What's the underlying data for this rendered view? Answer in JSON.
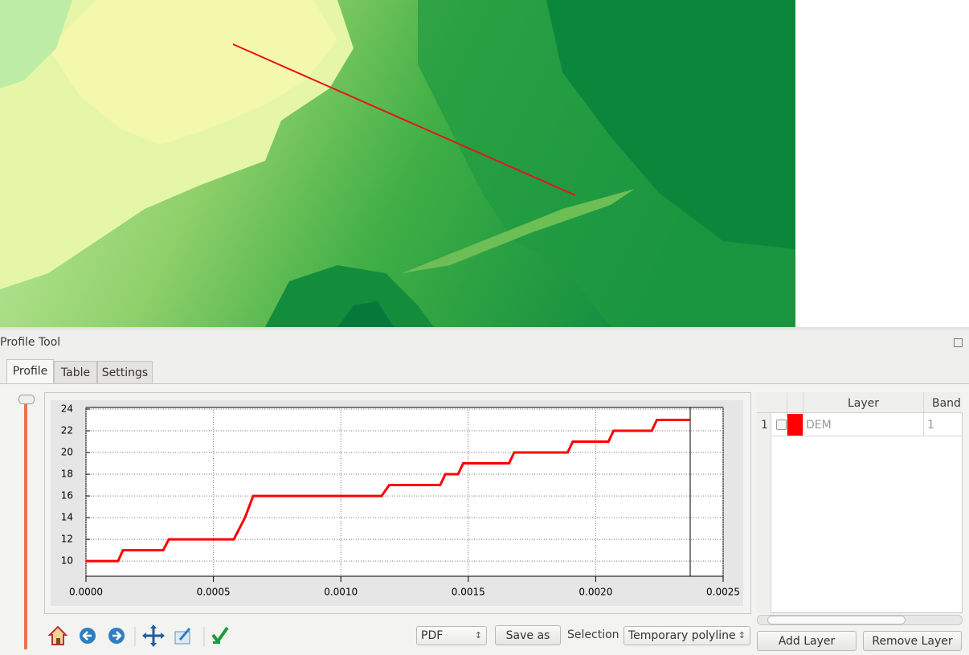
{
  "panel": {
    "title": "Profile Tool",
    "tabs": [
      "Profile",
      "Table",
      "Settings"
    ]
  },
  "chart_data": {
    "type": "line",
    "x": [
      0,
      0.000126,
      0.000145,
      0.000303,
      0.000325,
      0.00058,
      0.000624,
      0.000656,
      0.00116,
      0.00119,
      0.00139,
      0.00141,
      0.00146,
      0.00148,
      0.00166,
      0.00168,
      0.00189,
      0.00191,
      0.00205,
      0.00207,
      0.00222,
      0.00224,
      0.00237
    ],
    "values": [
      10,
      10,
      11,
      11,
      12,
      12,
      14,
      16,
      16,
      17,
      17,
      18,
      18,
      19,
      19,
      20,
      20,
      21,
      21,
      22,
      22,
      23,
      23
    ],
    "color": "#ff0000",
    "xlim": [
      0,
      0.0025
    ],
    "ylim": [
      8.6,
      24.15
    ],
    "xticks": [
      {
        "value": 0,
        "label": "0.0000"
      },
      {
        "value": 0.0005,
        "label": "0.0005"
      },
      {
        "value": 0.001,
        "label": "0.0010"
      },
      {
        "value": 0.0015,
        "label": "0.0015"
      },
      {
        "value": 0.002,
        "label": "0.0020"
      },
      {
        "value": 0.0025,
        "label": "0.0025"
      }
    ],
    "yticks": [
      10,
      12,
      14,
      16,
      18,
      20,
      22,
      24
    ],
    "grid": true
  },
  "layer_table": {
    "headers": [
      "Layer",
      "Band"
    ],
    "rows": [
      [
        "1",
        "DEM",
        "1"
      ]
    ]
  },
  "toolbar": {
    "format": "PDF",
    "save": "Save as",
    "selection_label": "Selection",
    "selection": "Temporary polyline",
    "add_layer": "Add Layer",
    "remove_layer": "Remove Layer"
  }
}
